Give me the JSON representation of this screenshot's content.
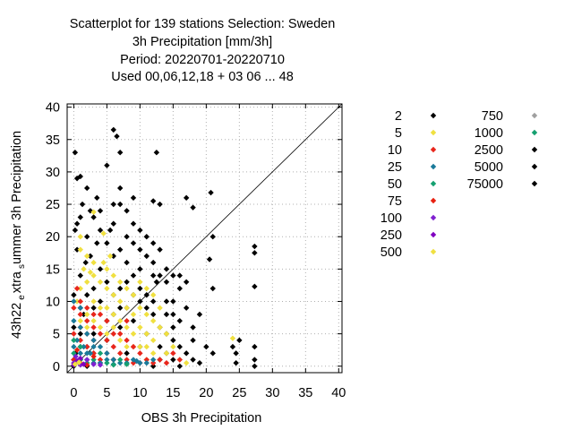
{
  "chart_data": {
    "type": "scatter",
    "title_lines": [
      "Scatterplot for  139 stations Selection: Sweden",
      "3h Precipitation [mm/3h]",
      "Period: 20220701-20220710",
      "Used  00,06,12,18  + 03 06 ... 48"
    ],
    "xlabel": "OBS 3h Precipitation",
    "ylabel_main": "43h22",
    "ylabel_sub1": "e",
    "ylabel_mid": "xtra",
    "ylabel_sub2": "s",
    "ylabel_end": "ummer 3h Precipitation",
    "xlim": [
      -1,
      40.5
    ],
    "ylim": [
      -1,
      40.5
    ],
    "xticks": [
      0,
      5,
      10,
      15,
      20,
      25,
      30,
      35,
      40
    ],
    "yticks": [
      0,
      5,
      10,
      15,
      20,
      25,
      30,
      35,
      40
    ],
    "grid": true,
    "diagonal": true,
    "legend_position": "right",
    "series": [
      {
        "name": "2",
        "color": "#000000",
        "points": [
          [
            0.2,
            33
          ],
          [
            0.5,
            29
          ],
          [
            1,
            29.3
          ],
          [
            1.3,
            25
          ],
          [
            2,
            27.5
          ],
          [
            3,
            23
          ],
          [
            4,
            24
          ],
          [
            5,
            31
          ],
          [
            6,
            36.5
          ],
          [
            6.5,
            35.5
          ],
          [
            7,
            33
          ],
          [
            12,
            25.5
          ],
          [
            12.5,
            33
          ],
          [
            13,
            25
          ],
          [
            17,
            26
          ],
          [
            18,
            24.5
          ],
          [
            20.7,
            26.8
          ],
          [
            20.5,
            16.5
          ],
          [
            21,
            20
          ],
          [
            21,
            12
          ],
          [
            27.3,
            18.5
          ],
          [
            27.3,
            17.5
          ],
          [
            27.3,
            12.3
          ],
          [
            27.3,
            0
          ],
          [
            27.3,
            1
          ],
          [
            27.3,
            3
          ],
          [
            24.5,
            2
          ],
          [
            24.5,
            0.5
          ],
          [
            18,
            6
          ],
          [
            15,
            8
          ],
          [
            14,
            10
          ],
          [
            12.5,
            13
          ],
          [
            10,
            18
          ],
          [
            8,
            20
          ],
          [
            6,
            22
          ],
          [
            5.5,
            21
          ],
          [
            4,
            21
          ],
          [
            3.5,
            19
          ],
          [
            2.5,
            17
          ],
          [
            1.8,
            16
          ],
          [
            1,
            14
          ],
          [
            0,
            11
          ],
          [
            0.3,
            2
          ],
          [
            0,
            6
          ],
          [
            1.5,
            8
          ],
          [
            3,
            9
          ],
          [
            4,
            10
          ],
          [
            6,
            11
          ],
          [
            7,
            12
          ],
          [
            8,
            13
          ],
          [
            9,
            14
          ],
          [
            10,
            12
          ],
          [
            11,
            9
          ],
          [
            12,
            8
          ],
          [
            13,
            6
          ],
          [
            14,
            5
          ],
          [
            15,
            4
          ],
          [
            16,
            3
          ],
          [
            17,
            2
          ],
          [
            18,
            1
          ],
          [
            19,
            0.5
          ],
          [
            15,
            6
          ],
          [
            13,
            3
          ],
          [
            11,
            5
          ],
          [
            9,
            7
          ],
          [
            7,
            6
          ],
          [
            5,
            4
          ],
          [
            3,
            2
          ],
          [
            2,
            3
          ],
          [
            1,
            5
          ],
          [
            4,
            15
          ],
          [
            6,
            17
          ],
          [
            8,
            16
          ],
          [
            9,
            19
          ],
          [
            11,
            17
          ],
          [
            12,
            16
          ],
          [
            13,
            14
          ],
          [
            14,
            13
          ],
          [
            16,
            12
          ],
          [
            17,
            9
          ],
          [
            19,
            8
          ],
          [
            16,
            7
          ],
          [
            14,
            8
          ],
          [
            12,
            10
          ],
          [
            10,
            10
          ],
          [
            8,
            9
          ],
          [
            6,
            8
          ],
          [
            5,
            13
          ],
          [
            3,
            12
          ],
          [
            2,
            11
          ],
          [
            1,
            9
          ],
          [
            0.5,
            18
          ],
          [
            2,
            20
          ],
          [
            5,
            19
          ],
          [
            7,
            18
          ],
          [
            10,
            15
          ],
          [
            12,
            14
          ],
          [
            15,
            10
          ],
          [
            18,
            4
          ],
          [
            20,
            3
          ],
          [
            21,
            2
          ],
          [
            25,
            4
          ],
          [
            24,
            3
          ],
          [
            12,
            0
          ],
          [
            13,
            1
          ],
          [
            14,
            2
          ],
          [
            15,
            1
          ],
          [
            16,
            0
          ],
          [
            10,
            3
          ],
          [
            8,
            2
          ],
          [
            6,
            1
          ],
          [
            4,
            0.5
          ],
          [
            2,
            0
          ],
          [
            11,
            11
          ],
          [
            9,
            11
          ],
          [
            7,
            9
          ],
          [
            5,
            7
          ],
          [
            3,
            5
          ],
          [
            1,
            3
          ],
          [
            0,
            0
          ],
          [
            0,
            1
          ],
          [
            6,
            25
          ],
          [
            7,
            25
          ],
          [
            8,
            24
          ],
          [
            9,
            22
          ],
          [
            10,
            21
          ],
          [
            11,
            20
          ],
          [
            12,
            19
          ],
          [
            13,
            18
          ],
          [
            14,
            15
          ],
          [
            15,
            14
          ],
          [
            16,
            14
          ],
          [
            17,
            13
          ],
          [
            9,
            26
          ],
          [
            7,
            27.5
          ],
          [
            3.5,
            26
          ],
          [
            2.5,
            24
          ],
          [
            1,
            23
          ],
          [
            0.5,
            22
          ],
          [
            0.2,
            21
          ]
        ]
      },
      {
        "name": "5",
        "color": "#f0e040",
        "points": [
          [
            1,
            12
          ],
          [
            2,
            13
          ],
          [
            3,
            14
          ],
          [
            4,
            13
          ],
          [
            5,
            12
          ],
          [
            6,
            11
          ],
          [
            7,
            10
          ],
          [
            8,
            9
          ],
          [
            9,
            8
          ],
          [
            10,
            9
          ],
          [
            11,
            8
          ],
          [
            12,
            7
          ],
          [
            13,
            6
          ],
          [
            14,
            5
          ],
          [
            1,
            18
          ],
          [
            2,
            17
          ],
          [
            3,
            16
          ],
          [
            5,
            15
          ],
          [
            6,
            14
          ],
          [
            7,
            13
          ],
          [
            8,
            12
          ],
          [
            9,
            11
          ],
          [
            3,
            10
          ],
          [
            4,
            9
          ],
          [
            5,
            9
          ],
          [
            6,
            8
          ],
          [
            7,
            7
          ],
          [
            8,
            6
          ],
          [
            9,
            5
          ],
          [
            10,
            6
          ],
          [
            11,
            5
          ],
          [
            12,
            4
          ],
          [
            2,
            8
          ],
          [
            3,
            7
          ],
          [
            4,
            6
          ],
          [
            5,
            5
          ],
          [
            6,
            6
          ],
          [
            7,
            4
          ],
          [
            8,
            3
          ],
          [
            9,
            3
          ],
          [
            10,
            3
          ],
          [
            11,
            3
          ],
          [
            12,
            2
          ],
          [
            1.5,
            15
          ],
          [
            2.5,
            14.5
          ],
          [
            4.5,
            16
          ],
          [
            5.5,
            17
          ],
          [
            1,
            20
          ],
          [
            4.5,
            20.5
          ],
          [
            3,
            23.8
          ],
          [
            14,
            2
          ],
          [
            15,
            3
          ],
          [
            13,
            9
          ],
          [
            12,
            11
          ],
          [
            11,
            12
          ],
          [
            10,
            13
          ],
          [
            24,
            4.3
          ],
          [
            17,
            0.5
          ],
          [
            16,
            1
          ],
          [
            11,
            1
          ],
          [
            2,
            6
          ],
          [
            1,
            7
          ],
          [
            0.5,
            10
          ]
        ]
      },
      {
        "name": "10",
        "color": "#e8261c",
        "points": [
          [
            0,
            9
          ],
          [
            1,
            8
          ],
          [
            2,
            7
          ],
          [
            3,
            6
          ],
          [
            4,
            5
          ],
          [
            5,
            4
          ],
          [
            6,
            3
          ],
          [
            7,
            2
          ],
          [
            8,
            1
          ],
          [
            0,
            5
          ],
          [
            1,
            4
          ],
          [
            2,
            3
          ],
          [
            3,
            2
          ],
          [
            4,
            1
          ],
          [
            1,
            10
          ],
          [
            2,
            9
          ],
          [
            3,
            8
          ],
          [
            0.5,
            12
          ],
          [
            6,
            5
          ],
          [
            8,
            4
          ],
          [
            10,
            2
          ],
          [
            11,
            1
          ],
          [
            12,
            0.5
          ],
          [
            5,
            2
          ],
          [
            6,
            1
          ],
          [
            9,
            3
          ],
          [
            7,
            5
          ],
          [
            8,
            7
          ],
          [
            4,
            8
          ],
          [
            5,
            7
          ],
          [
            13,
            1
          ],
          [
            14,
            0.5
          ],
          [
            15,
            2
          ],
          [
            16,
            1
          ],
          [
            9,
            0.5
          ],
          [
            10,
            0.5
          ],
          [
            1,
            6
          ],
          [
            2,
            5
          ],
          [
            3,
            4
          ]
        ]
      },
      {
        "name": "25",
        "color": "#1a7a9a",
        "points": [
          [
            0,
            7
          ],
          [
            1,
            6
          ],
          [
            2,
            5
          ],
          [
            3,
            4
          ],
          [
            4,
            3
          ],
          [
            5,
            2
          ],
          [
            6,
            1
          ],
          [
            7,
            0.5
          ],
          [
            0,
            3
          ],
          [
            1,
            2
          ],
          [
            2,
            1
          ],
          [
            3,
            0.5
          ],
          [
            0,
            10
          ],
          [
            1,
            9
          ],
          [
            0.5,
            4
          ],
          [
            1.5,
            3
          ],
          [
            2.5,
            2
          ],
          [
            8,
            0.5
          ],
          [
            9,
            1
          ],
          [
            10,
            0.5
          ],
          [
            11,
            0.5
          ],
          [
            4,
            0.5
          ],
          [
            5,
            1
          ],
          [
            6,
            0.3
          ],
          [
            3,
            3
          ],
          [
            2,
            2
          ],
          [
            1,
            1
          ],
          [
            9.5,
            0.8
          ],
          [
            12,
            1
          ]
        ]
      },
      {
        "name": "50",
        "color": "#15a070",
        "points": [
          [
            0,
            2
          ],
          [
            1,
            1
          ],
          [
            2,
            0.5
          ],
          [
            0,
            4
          ],
          [
            1,
            3
          ],
          [
            5,
            0.5
          ],
          [
            6,
            0.2
          ],
          [
            3,
            1
          ],
          [
            4,
            2
          ],
          [
            7,
            1
          ],
          [
            8,
            0.3
          ]
        ]
      },
      {
        "name": "75",
        "color": "#e82010",
        "points": [
          [
            0,
            1
          ],
          [
            1,
            0.5
          ],
          [
            2,
            0.2
          ],
          [
            3,
            1.5
          ],
          [
            0.5,
            2.5
          ]
        ]
      },
      {
        "name": "100",
        "color": "#8020d0",
        "points": [
          [
            0,
            0.5
          ],
          [
            1,
            0.2
          ],
          [
            2,
            1
          ],
          [
            3,
            0.3
          ],
          [
            0.3,
            1.5
          ],
          [
            4,
            0.2
          ]
        ]
      },
      {
        "name": "250",
        "color": "#8000c0",
        "points": [
          [
            0,
            0.2
          ],
          [
            0.5,
            0.8
          ],
          [
            1,
            1.2
          ],
          [
            1.5,
            0.3
          ]
        ]
      },
      {
        "name": "500",
        "color": "#f0e040",
        "points": [
          [
            0.2,
            0.3
          ],
          [
            0.8,
            0.6
          ]
        ]
      },
      {
        "name": "750",
        "color": "#a0a0a0",
        "points": []
      },
      {
        "name": "1000",
        "color": "#15a070",
        "points": []
      },
      {
        "name": "2500",
        "color": "#000000",
        "points": []
      },
      {
        "name": "5000",
        "color": "#000000",
        "points": []
      },
      {
        "name": "75000",
        "color": "#000000",
        "points": []
      }
    ]
  }
}
